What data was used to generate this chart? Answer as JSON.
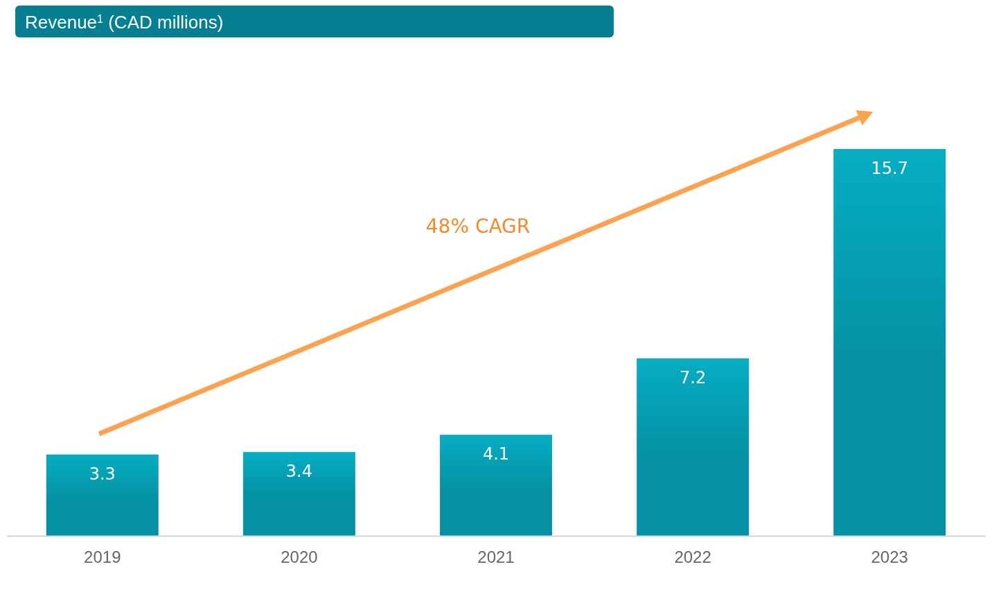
{
  "chart_data": {
    "type": "bar",
    "title": "Revenue$^{1}$ (CAD millions)",
    "categories": [
      "2019",
      "2020",
      "2021",
      "2022",
      "2023"
    ],
    "values": [
      3.3,
      3.4,
      4.1,
      7.2,
      15.7
    ],
    "color": "#0591a3",
    "data_labels": true,
    "annotations": [
      "48% CAGR"
    ]
  }
}
